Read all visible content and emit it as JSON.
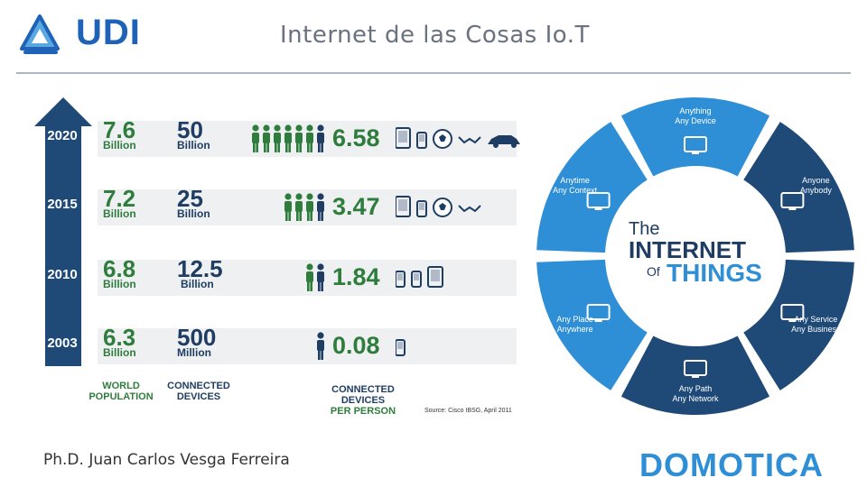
{
  "header": {
    "logo_text": "UDI",
    "title": "Internet de las Cosas Io.T"
  },
  "rows": [
    {
      "year": "2020",
      "population": "7.6",
      "population_unit": "Billion",
      "devices": "50",
      "devices_unit": "Billion",
      "people_count": 7,
      "per_person": "6.58",
      "device_icons": [
        "tablet",
        "phone",
        "ball",
        "glasses",
        "car"
      ]
    },
    {
      "year": "2015",
      "population": "7.2",
      "population_unit": "Billion",
      "devices": "25",
      "devices_unit": "Billion",
      "people_count": 4,
      "per_person": "3.47",
      "device_icons": [
        "tablet",
        "phone",
        "ball",
        "glasses"
      ]
    },
    {
      "year": "2010",
      "population": "6.8",
      "population_unit": "Billion",
      "devices": "12.5",
      "devices_unit": "Billion",
      "people_count": 2,
      "per_person": "1.84",
      "device_icons": [
        "phone",
        "phone",
        "tablet"
      ]
    },
    {
      "year": "2003",
      "population": "6.3",
      "population_unit": "Billion",
      "devices": "500",
      "devices_unit": "Million",
      "people_count": 1,
      "per_person": "0.08",
      "device_icons": [
        "phone"
      ]
    }
  ],
  "column_labels": {
    "population": [
      "WORLD",
      "POPULATION"
    ],
    "devices": [
      "CONNECTED",
      "DEVICES"
    ],
    "per_person": [
      "CONNECTED",
      "DEVICES",
      "PER PERSON"
    ]
  },
  "source": "Source: Cisco IBSG, April 2011",
  "circle": {
    "center": [
      "The",
      "INTERNET",
      "Of",
      "THINGS"
    ],
    "segments": [
      {
        "lines": [
          "Anything",
          "Any Device"
        ],
        "color": "#2f8fd6",
        "icon": "devices-icon"
      },
      {
        "lines": [
          "Anyone",
          "Anybody"
        ],
        "color": "#1f4a78",
        "icon": "people-icon"
      },
      {
        "lines": [
          "Any Service",
          "Any Business"
        ],
        "color": "#1f4a78",
        "icon": "factory-icon"
      },
      {
        "lines": [
          "Any Path",
          "Any Network"
        ],
        "color": "#1f4a78",
        "icon": "network-icon"
      },
      {
        "lines": [
          "Any Place",
          "Anywhere"
        ],
        "color": "#2f8fd6",
        "icon": "location-icon"
      },
      {
        "lines": [
          "Anytime",
          "Any Context"
        ],
        "color": "#2f8fd6",
        "icon": "clock-icon"
      }
    ]
  },
  "footer": {
    "author": "Ph.D. Juan Carlos Vesga Ferreira",
    "brand": "DOMOTICA"
  }
}
